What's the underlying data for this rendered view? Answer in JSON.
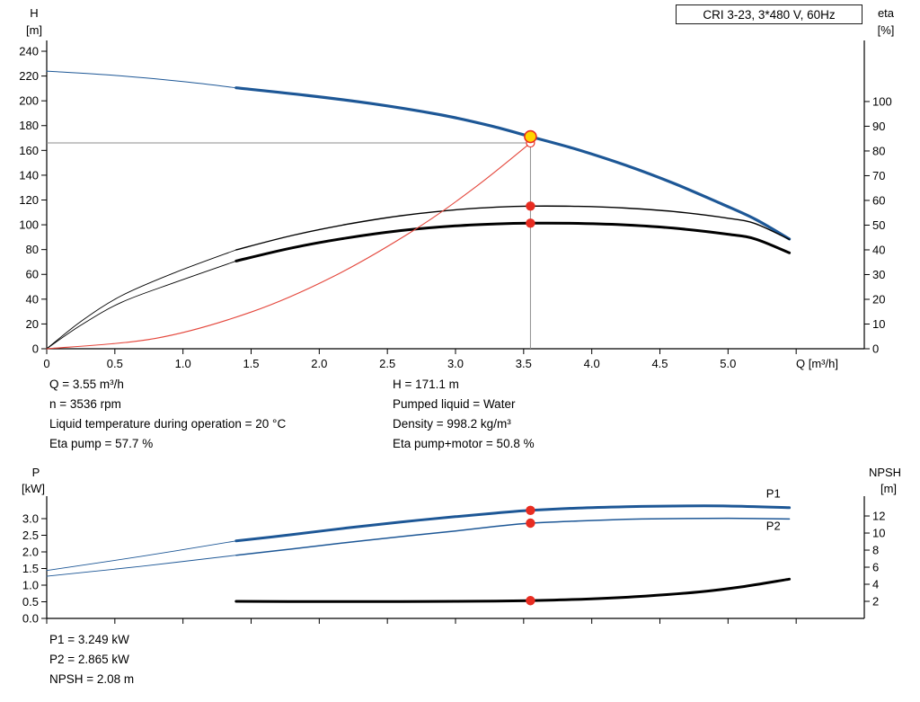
{
  "colors": {
    "curve_blue": "#1d5796",
    "curve_black": "#000000",
    "curve_red": "#e4473c",
    "dot_red": "#e82c21",
    "duty_yellow": "#ffd400",
    "ref_gray": "#8c8c8c",
    "axis": "#000000"
  },
  "info_top_left": [
    "Q = 3.55 m³/h",
    "n = 3536 rpm",
    "Liquid temperature during operation = 20 °C",
    "Eta pump = 57.7 %"
  ],
  "info_top_right": [
    "H = 171.1 m",
    "Pumped liquid = Water",
    "Density = 998.2 kg/m³",
    "Eta pump+motor = 50.8 %"
  ],
  "info_bottom": [
    "P1 = 3.249 kW",
    "P2 = 2.865 kW",
    "NPSH = 2.08 m"
  ],
  "chart_data": [
    {
      "type": "line",
      "title": "CRI 3-23, 3*480 V, 60Hz",
      "x_label": "Q [m³/h]",
      "y_left_label": [
        "H",
        "[m]"
      ],
      "y_right_label": [
        "eta",
        "[%]"
      ],
      "x_range": [
        0,
        6
      ],
      "y_left_range": [
        0,
        248.7
      ],
      "y_right_range": [
        0,
        124.7
      ],
      "x_ticks": {
        "values": [
          0,
          0.5,
          1,
          1.5,
          2,
          2.5,
          3,
          3.5,
          4,
          4.5,
          5,
          5.5
        ],
        "labels": [
          "0",
          "0.5",
          "1.0",
          "1.5",
          "2.0",
          "2.5",
          "3.0",
          "3.5",
          "4.0",
          "4.5",
          "5.0",
          ""
        ]
      },
      "y_left_ticks": {
        "values": [
          0,
          20,
          40,
          60,
          80,
          100,
          120,
          140,
          160,
          180,
          200,
          220,
          240
        ],
        "labels": [
          "0",
          "20",
          "40",
          "60",
          "80",
          "100",
          "120",
          "140",
          "160",
          "180",
          "200",
          "220",
          "240"
        ]
      },
      "y_right_ticks": {
        "values": [
          0,
          10,
          20,
          30,
          40,
          50,
          60,
          70,
          80,
          90,
          100
        ],
        "labels": [
          "0",
          "10",
          "20",
          "30",
          "40",
          "50",
          "60",
          "70",
          "80",
          "90",
          "100"
        ]
      },
      "series": [
        {
          "name": "pump-curve-extension",
          "axis": "left",
          "color": "curve_blue",
          "width": 1,
          "points": [
            [
              0,
              224
            ],
            [
              0.5,
              220.5
            ],
            [
              1.0,
              215.5
            ],
            [
              1.39,
              210.5
            ]
          ]
        },
        {
          "name": "pump-curve",
          "axis": "left",
          "color": "curve_blue",
          "width": 3.2,
          "points": [
            [
              1.39,
              210.5
            ],
            [
              1.9,
              204.5
            ],
            [
              2.4,
              197.5
            ],
            [
              2.9,
              188.5
            ],
            [
              3.25,
              180
            ],
            [
              3.55,
              171.1
            ],
            [
              3.9,
              160.5
            ],
            [
              4.25,
              148
            ],
            [
              4.6,
              133.5
            ],
            [
              4.95,
              117
            ],
            [
              5.2,
              104.5
            ],
            [
              5.45,
              88.5
            ]
          ]
        },
        {
          "name": "eta-pump-extension",
          "axis": "right",
          "color": "curve_black",
          "width": 0.9,
          "points": [
            [
              0,
              0
            ],
            [
              0.25,
              11
            ],
            [
              0.55,
              21.5
            ],
            [
              0.95,
              31
            ],
            [
              1.39,
              40
            ]
          ]
        },
        {
          "name": "eta-pump-curve",
          "axis": "right",
          "color": "curve_black",
          "width": 1.4,
          "points": [
            [
              1.39,
              40
            ],
            [
              1.8,
              45.8
            ],
            [
              2.2,
              50.3
            ],
            [
              2.6,
              53.8
            ],
            [
              3.0,
              56.2
            ],
            [
              3.3,
              57.3
            ],
            [
              3.55,
              57.7
            ],
            [
              3.9,
              57.6
            ],
            [
              4.25,
              56.9
            ],
            [
              4.6,
              55.5
            ],
            [
              5.0,
              52.8
            ],
            [
              5.2,
              50.6
            ],
            [
              5.45,
              44.2
            ]
          ]
        },
        {
          "name": "eta-pump-motor-extension",
          "axis": "right",
          "color": "curve_black",
          "width": 0.9,
          "points": [
            [
              0,
              0
            ],
            [
              0.25,
              9.5
            ],
            [
              0.55,
              18.8
            ],
            [
              0.95,
              27
            ],
            [
              1.39,
              35.5
            ]
          ]
        },
        {
          "name": "eta-pump-motor-curve",
          "axis": "right",
          "color": "curve_black",
          "width": 3,
          "points": [
            [
              1.39,
              35.5
            ],
            [
              1.8,
              40.8
            ],
            [
              2.2,
              44.8
            ],
            [
              2.6,
              47.8
            ],
            [
              3.0,
              49.7
            ],
            [
              3.3,
              50.5
            ],
            [
              3.55,
              50.8
            ],
            [
              3.9,
              50.7
            ],
            [
              4.25,
              50.1
            ],
            [
              4.6,
              48.8
            ],
            [
              5.0,
              46.3
            ],
            [
              5.2,
              44.4
            ],
            [
              5.45,
              38.8
            ]
          ]
        },
        {
          "name": "system-curve",
          "axis": "left",
          "color": "curve_red",
          "width": 1.1,
          "points": [
            [
              0,
              0
            ],
            [
              0.8,
              8.4
            ],
            [
              1.5,
              29.6
            ],
            [
              2.1,
              58.1
            ],
            [
              2.7,
              96
            ],
            [
              3.15,
              130.7
            ],
            [
              3.55,
              166
            ]
          ]
        }
      ],
      "ref_lines": [
        {
          "orient": "v",
          "x": 3.55,
          "y1": 0,
          "y2": 171.1,
          "axis": "left"
        },
        {
          "orient": "h",
          "y": 166,
          "x1": 0,
          "x2": 3.55,
          "axis": "left"
        }
      ],
      "markers": [
        {
          "kind": "dot",
          "x": 3.55,
          "y": 57.7,
          "axis": "right"
        },
        {
          "kind": "dot",
          "x": 3.55,
          "y": 50.8,
          "axis": "right"
        },
        {
          "kind": "open",
          "x": 3.55,
          "y": 166,
          "axis": "left"
        },
        {
          "kind": "duty",
          "x": 3.55,
          "y": 171.1,
          "axis": "left"
        }
      ],
      "annotations": []
    },
    {
      "type": "line",
      "title": "",
      "x_label": "",
      "y_left_label": [
        "P",
        "[kW]"
      ],
      "y_right_label": [
        "NPSH",
        "[m]"
      ],
      "x_range": [
        0,
        6
      ],
      "y_left_range": [
        0,
        3.676
      ],
      "y_right_range": [
        0,
        14.32
      ],
      "x_ticks": {
        "values": [
          0,
          0.5,
          1,
          1.5,
          2,
          2.5,
          3,
          3.5,
          4,
          4.5,
          5,
          5.5
        ],
        "labels": [
          "",
          "",
          "",
          "",
          "",
          "",
          "",
          "",
          "",
          "",
          "",
          ""
        ]
      },
      "y_left_ticks": {
        "values": [
          0,
          0.5,
          1,
          1.5,
          2,
          2.5,
          3
        ],
        "labels": [
          "0.0",
          "0.5",
          "1.0",
          "1.5",
          "2.0",
          "2.5",
          "3.0"
        ]
      },
      "y_right_ticks": {
        "values": [
          2,
          4,
          6,
          8,
          10,
          12
        ],
        "labels": [
          "2",
          "4",
          "6",
          "8",
          "10",
          "12"
        ]
      },
      "series": [
        {
          "name": "p1-extension",
          "axis": "left",
          "color": "curve_blue",
          "width": 0.9,
          "points": [
            [
              0,
              1.44
            ],
            [
              0.7,
              1.87
            ],
            [
              1.39,
              2.33
            ]
          ]
        },
        {
          "name": "p1-curve",
          "axis": "left",
          "color": "curve_blue",
          "width": 3,
          "points": [
            [
              1.39,
              2.33
            ],
            [
              1.8,
              2.52
            ],
            [
              2.2,
              2.72
            ],
            [
              2.6,
              2.9
            ],
            [
              3.0,
              3.06
            ],
            [
              3.3,
              3.17
            ],
            [
              3.55,
              3.249
            ],
            [
              3.9,
              3.32
            ],
            [
              4.25,
              3.36
            ],
            [
              4.6,
              3.38
            ],
            [
              5.0,
              3.38
            ],
            [
              5.45,
              3.33
            ]
          ]
        },
        {
          "name": "p2-extension",
          "axis": "left",
          "color": "curve_blue",
          "width": 0.9,
          "points": [
            [
              0,
              1.27
            ],
            [
              0.7,
              1.57
            ],
            [
              1.39,
              1.9
            ]
          ]
        },
        {
          "name": "p2-curve",
          "axis": "left",
          "color": "curve_blue",
          "width": 1.5,
          "points": [
            [
              1.39,
              1.9
            ],
            [
              1.8,
              2.09
            ],
            [
              2.2,
              2.28
            ],
            [
              2.6,
              2.46
            ],
            [
              3.0,
              2.63
            ],
            [
              3.3,
              2.77
            ],
            [
              3.55,
              2.865
            ],
            [
              3.9,
              2.93
            ],
            [
              4.25,
              2.98
            ],
            [
              4.6,
              3.0
            ],
            [
              5.0,
              3.01
            ],
            [
              5.45,
              2.99
            ]
          ]
        },
        {
          "name": "npsh-curve",
          "axis": "right",
          "color": "curve_black",
          "width": 3,
          "points": [
            [
              1.39,
              2.0
            ],
            [
              2.0,
              1.97
            ],
            [
              2.6,
              1.97
            ],
            [
              3.0,
              2.0
            ],
            [
              3.55,
              2.08
            ],
            [
              4.0,
              2.3
            ],
            [
              4.4,
              2.62
            ],
            [
              4.8,
              3.12
            ],
            [
              5.1,
              3.7
            ],
            [
              5.45,
              4.6
            ]
          ]
        }
      ],
      "ref_lines": [],
      "markers": [
        {
          "kind": "dot",
          "x": 3.55,
          "y": 3.249,
          "axis": "left"
        },
        {
          "kind": "dot",
          "x": 3.55,
          "y": 2.865,
          "axis": "left"
        },
        {
          "kind": "dot",
          "x": 3.55,
          "y": 2.08,
          "axis": "right"
        }
      ],
      "annotations": [
        {
          "text": "P1",
          "x": 5.28,
          "y": 3.64,
          "axis": "left",
          "color": "curve_blue"
        },
        {
          "text": "P2",
          "x": 5.28,
          "y": 2.66,
          "axis": "left",
          "color": "curve_blue"
        }
      ]
    }
  ]
}
